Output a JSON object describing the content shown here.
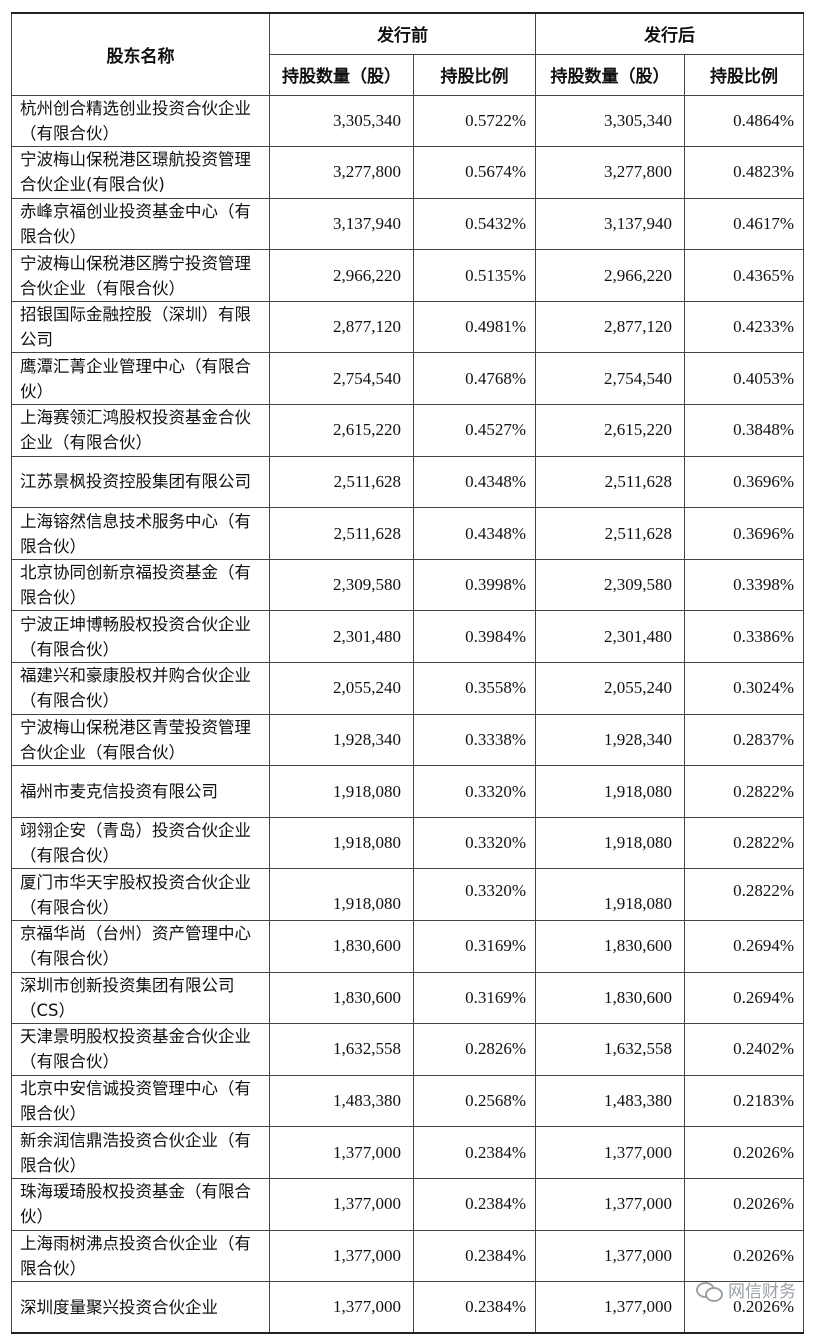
{
  "table": {
    "header": {
      "shareholder": "股东名称",
      "before": "发行前",
      "after": "发行后",
      "shares_before": "持股数量（股）",
      "ratio_before": "持股比例",
      "shares_after": "持股数量（股）",
      "ratio_after": "持股比例"
    },
    "rows": [
      {
        "name": "杭州创合精选创业投资合伙企业（有限合伙）",
        "shares_before": "3,305,340",
        "ratio_before": "0.5722%",
        "shares_after": "3,305,340",
        "ratio_after": "0.4864%"
      },
      {
        "name": "宁波梅山保税港区璟航投资管理合伙企业(有限合伙)",
        "shares_before": "3,277,800",
        "ratio_before": "0.5674%",
        "shares_after": "3,277,800",
        "ratio_after": "0.4823%"
      },
      {
        "name": "赤峰京福创业投资基金中心（有限合伙）",
        "shares_before": "3,137,940",
        "ratio_before": "0.5432%",
        "shares_after": "3,137,940",
        "ratio_after": "0.4617%"
      },
      {
        "name": "宁波梅山保税港区腾宁投资管理合伙企业（有限合伙）",
        "shares_before": "2,966,220",
        "ratio_before": "0.5135%",
        "shares_after": "2,966,220",
        "ratio_after": "0.4365%"
      },
      {
        "name": "招银国际金融控股（深圳）有限公司",
        "shares_before": "2,877,120",
        "ratio_before": "0.4981%",
        "shares_after": "2,877,120",
        "ratio_after": "0.4233%"
      },
      {
        "name": "鹰潭汇菁企业管理中心（有限合伙）",
        "shares_before": "2,754,540",
        "ratio_before": "0.4768%",
        "shares_after": "2,754,540",
        "ratio_after": "0.4053%"
      },
      {
        "name": "上海赛领汇鸿股权投资基金合伙企业（有限合伙）",
        "shares_before": "2,615,220",
        "ratio_before": "0.4527%",
        "shares_after": "2,615,220",
        "ratio_after": "0.3848%"
      },
      {
        "name": "江苏景枫投资控股集团有限公司",
        "shares_before": "2,511,628",
        "ratio_before": "0.4348%",
        "shares_after": "2,511,628",
        "ratio_after": "0.3696%"
      },
      {
        "name": "上海镕然信息技术服务中心（有限合伙）",
        "shares_before": "2,511,628",
        "ratio_before": "0.4348%",
        "shares_after": "2,511,628",
        "ratio_after": "0.3696%"
      },
      {
        "name": "北京协同创新京福投资基金（有限合伙）",
        "shares_before": "2,309,580",
        "ratio_before": "0.3998%",
        "shares_after": "2,309,580",
        "ratio_after": "0.3398%"
      },
      {
        "name": "宁波正坤博畅股权投资合伙企业（有限合伙）",
        "shares_before": "2,301,480",
        "ratio_before": "0.3984%",
        "shares_after": "2,301,480",
        "ratio_after": "0.3386%"
      },
      {
        "name": "福建兴和豪康股权并购合伙企业（有限合伙）",
        "shares_before": "2,055,240",
        "ratio_before": "0.3558%",
        "shares_after": "2,055,240",
        "ratio_after": "0.3024%"
      },
      {
        "name": "宁波梅山保税港区青莹投资管理合伙企业（有限合伙）",
        "shares_before": "1,928,340",
        "ratio_before": "0.3338%",
        "shares_after": "1,928,340",
        "ratio_after": "0.2837%"
      },
      {
        "name": "福州市麦克信投资有限公司",
        "shares_before": "1,918,080",
        "ratio_before": "0.3320%",
        "shares_after": "1,918,080",
        "ratio_after": "0.2822%"
      },
      {
        "name": "翊翎企安（青岛）投资合伙企业（有限合伙）",
        "shares_before": "1,918,080",
        "ratio_before": "0.3320%",
        "shares_after": "1,918,080",
        "ratio_after": "0.2822%"
      },
      {
        "name": "厦门市华天宇股权投资合伙企业（有限合伙）",
        "shares_before": "1,918,080",
        "ratio_before": "0.3320%",
        "shares_after": "1,918,080",
        "ratio_after": "0.2822%"
      },
      {
        "name": "京福华尚（台州）资产管理中心（有限合伙）",
        "shares_before": "1,830,600",
        "ratio_before": "0.3169%",
        "shares_after": "1,830,600",
        "ratio_after": "0.2694%"
      },
      {
        "name": "深圳市创新投资集团有限公司（CS）",
        "shares_before": "1,830,600",
        "ratio_before": "0.3169%",
        "shares_after": "1,830,600",
        "ratio_after": "0.2694%"
      },
      {
        "name": "天津景明股权投资基金合伙企业（有限合伙）",
        "shares_before": "1,632,558",
        "ratio_before": "0.2826%",
        "shares_after": "1,632,558",
        "ratio_after": "0.2402%"
      },
      {
        "name": "北京中安信诚投资管理中心（有限合伙）",
        "shares_before": "1,483,380",
        "ratio_before": "0.2568%",
        "shares_after": "1,483,380",
        "ratio_after": "0.2183%"
      },
      {
        "name": "新余润信鼎浩投资合伙企业（有限合伙）",
        "shares_before": "1,377,000",
        "ratio_before": "0.2384%",
        "shares_after": "1,377,000",
        "ratio_after": "0.2026%"
      },
      {
        "name": "珠海瑗琦股权投资基金（有限合伙）",
        "shares_before": "1,377,000",
        "ratio_before": "0.2384%",
        "shares_after": "1,377,000",
        "ratio_after": "0.2026%"
      },
      {
        "name": "上海雨树沸点投资合伙企业（有限合伙）",
        "shares_before": "1,377,000",
        "ratio_before": "0.2384%",
        "shares_after": "1,377,000",
        "ratio_after": "0.2026%"
      },
      {
        "name": "深圳度量聚兴投资合伙企业",
        "shares_before": "1,377,000",
        "ratio_before": "0.2384%",
        "shares_after": "1,377,000",
        "ratio_after": "0.2026%"
      }
    ]
  },
  "watermark": {
    "text": "网信财务",
    "icon": "wechat-icon"
  }
}
